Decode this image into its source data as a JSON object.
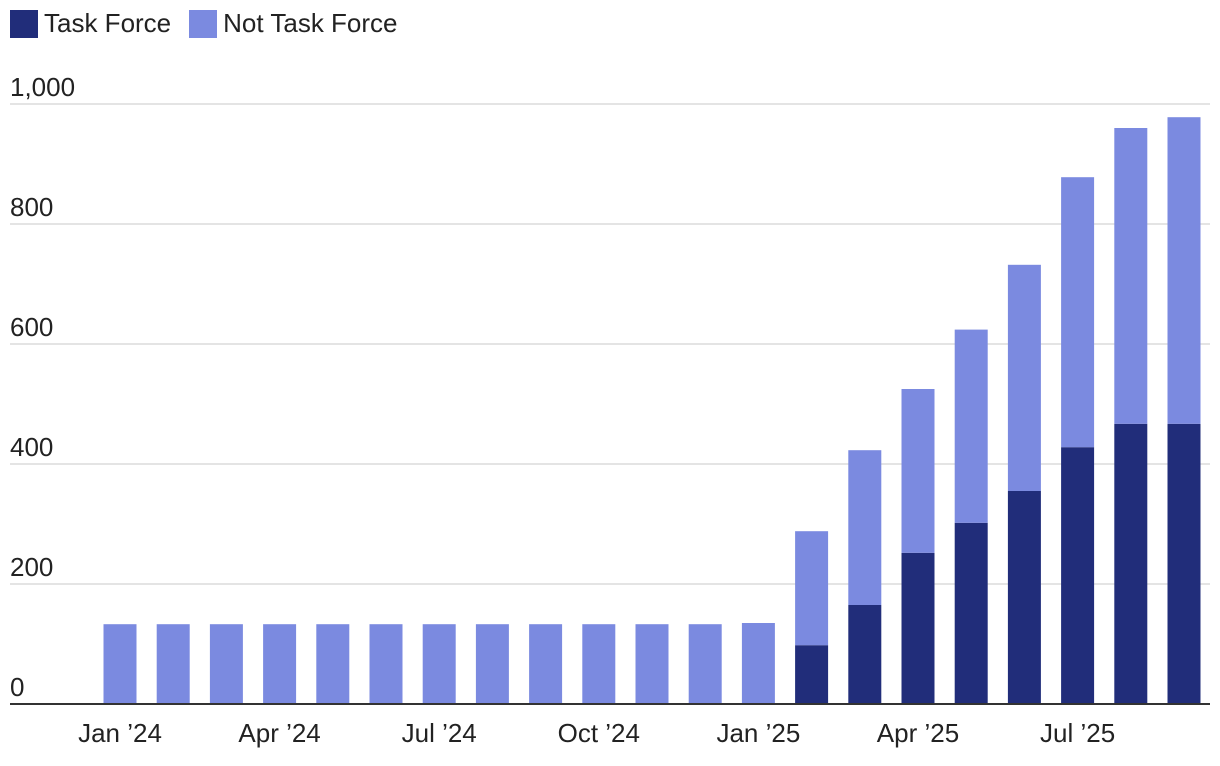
{
  "chart_data": {
    "type": "bar",
    "stacked": true,
    "title": "",
    "xlabel": "",
    "ylabel": "",
    "ylim": [
      0,
      1000
    ],
    "yticks": [
      0,
      200,
      400,
      600,
      800,
      1000
    ],
    "ytick_labels": [
      "0",
      "200",
      "400",
      "600",
      "800",
      "1,000"
    ],
    "categories": [
      "Jan '24",
      "Feb '24",
      "Mar '24",
      "Apr '24",
      "May '24",
      "Jun '24",
      "Jul '24",
      "Aug '24",
      "Sep '24",
      "Oct '24",
      "Nov '24",
      "Dec '24",
      "Jan '25",
      "Feb '25",
      "Mar '25",
      "Apr '25",
      "May '25",
      "Jun '25",
      "Jul '25",
      "Aug '25",
      "Sep '25"
    ],
    "xtick_labels": [
      {
        "index": 0,
        "label": "Jan ’24"
      },
      {
        "index": 3,
        "label": "Apr ’24"
      },
      {
        "index": 6,
        "label": "Jul ’24"
      },
      {
        "index": 9,
        "label": "Oct ’24"
      },
      {
        "index": 12,
        "label": "Jan ’25"
      },
      {
        "index": 15,
        "label": "Apr ’25"
      },
      {
        "index": 18,
        "label": "Jul ’25"
      }
    ],
    "series": [
      {
        "name": "Task Force",
        "color": "#212d7a",
        "values": [
          0,
          0,
          0,
          0,
          0,
          0,
          0,
          0,
          0,
          0,
          0,
          0,
          0,
          98,
          165,
          252,
          302,
          355,
          428,
          467,
          467
        ]
      },
      {
        "name": "Not Task Force",
        "color": "#7b8ae0",
        "values": [
          133,
          133,
          133,
          133,
          133,
          133,
          133,
          133,
          133,
          133,
          133,
          133,
          135,
          190,
          258,
          273,
          322,
          377,
          450,
          493,
          511
        ]
      }
    ],
    "legend": {
      "placement": "top-left"
    },
    "grid": true
  }
}
